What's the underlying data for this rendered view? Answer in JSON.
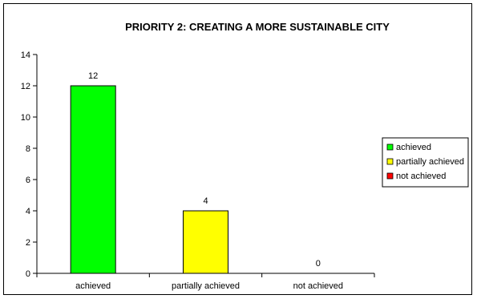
{
  "chart_data": {
    "type": "bar",
    "title": "PRIORITY 2: CREATING A MORE SUSTAINABLE CITY",
    "categories": [
      "achieved",
      "partially achieved",
      "not achieved"
    ],
    "values": [
      12,
      4,
      0
    ],
    "colors": [
      "#00ff00",
      "#ffff00",
      "#ff0000"
    ],
    "ylim": [
      0,
      14
    ],
    "yticks": [
      0,
      2,
      4,
      6,
      8,
      10,
      12,
      14
    ],
    "xlabel": "",
    "ylabel": "",
    "grid": false,
    "legend": {
      "placement": "right",
      "entries": [
        {
          "label": "achieved",
          "color": "#00ff00"
        },
        {
          "label": "partially achieved",
          "color": "#ffff00"
        },
        {
          "label": "not achieved",
          "color": "#ff0000"
        }
      ]
    }
  }
}
